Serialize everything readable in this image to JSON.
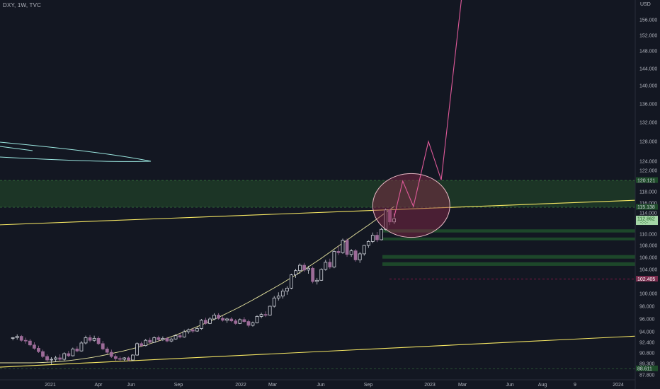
{
  "header": {
    "symbol": "DXY, 1W, TVC"
  },
  "chart_data": {
    "type": "candlestick",
    "title": "DXY, 1W, TVC",
    "currency": "USD",
    "ylim": [
      87.0,
      158.0
    ],
    "y_ticks": [
      {
        "v": 156.0,
        "label": "156.000"
      },
      {
        "v": 152.0,
        "label": "152.000"
      },
      {
        "v": 148.0,
        "label": "148.000"
      },
      {
        "v": 144.0,
        "label": "144.000"
      },
      {
        "v": 140.0,
        "label": "140.000"
      },
      {
        "v": 136.0,
        "label": "136.000"
      },
      {
        "v": 132.0,
        "label": "132.000"
      },
      {
        "v": 128.0,
        "label": "128.000"
      },
      {
        "v": 124.0,
        "label": "124.000"
      },
      {
        "v": 122.0,
        "label": "122.000"
      },
      {
        "v": 118.0,
        "label": "118.000"
      },
      {
        "v": 116.0,
        "label": "116.000"
      },
      {
        "v": 114.0,
        "label": "114.000"
      },
      {
        "v": 110.0,
        "label": "110.000"
      },
      {
        "v": 108.0,
        "label": "108.000"
      },
      {
        "v": 106.0,
        "label": "106.000"
      },
      {
        "v": 104.0,
        "label": "104.000"
      },
      {
        "v": 100.0,
        "label": "100.000"
      },
      {
        "v": 98.0,
        "label": "98.000"
      },
      {
        "v": 96.0,
        "label": "96.000"
      },
      {
        "v": 94.0,
        "label": "94.000"
      },
      {
        "v": 92.4,
        "label": "92.400"
      },
      {
        "v": 90.8,
        "label": "90.800"
      },
      {
        "v": 89.3,
        "label": "89.300"
      },
      {
        "v": 87.8,
        "label": "87.800"
      }
    ],
    "price_tags": [
      {
        "v": 120.121,
        "label": "120.121",
        "bg": "#1f4d2b",
        "fg": "#d1d4dc"
      },
      {
        "v": 115.138,
        "label": "115.138",
        "bg": "#1f4d2b",
        "fg": "#d1d4dc"
      },
      {
        "v": 112.862,
        "label": "112.862",
        "bg": "#a5d6a7",
        "fg": "#1b5e20",
        "sub": "-:-:-"
      },
      {
        "v": 102.405,
        "label": "102.405",
        "bg": "#7b2d4f",
        "fg": "#ffffff"
      },
      {
        "v": 88.611,
        "label": "88.611",
        "bg": "#1f4d2b",
        "fg": "#d1d4dc"
      }
    ],
    "x_labels": [
      "2021",
      "Apr",
      "Jun",
      "Sep",
      "2022",
      "Mar",
      "Jun",
      "Sep",
      "2023",
      "Mar",
      "Jun",
      "Aug",
      "9",
      "2024"
    ],
    "candles": [
      [
        93.0,
        93.2,
        92.7,
        93.1
      ],
      [
        93.1,
        93.6,
        92.8,
        93.3
      ],
      [
        93.3,
        93.5,
        92.5,
        92.7
      ],
      [
        92.7,
        93.1,
        92.2,
        92.6
      ],
      [
        92.6,
        92.9,
        91.8,
        92.0
      ],
      [
        92.0,
        92.4,
        91.3,
        91.5
      ],
      [
        91.5,
        91.9,
        90.8,
        91.0
      ],
      [
        91.0,
        91.3,
        90.1,
        90.3
      ],
      [
        90.3,
        90.6,
        89.5,
        89.8
      ],
      [
        89.8,
        90.2,
        89.2,
        89.9
      ],
      [
        89.9,
        90.4,
        89.5,
        90.1
      ],
      [
        90.1,
        90.6,
        89.6,
        89.9
      ],
      [
        89.9,
        90.9,
        89.7,
        90.7
      ],
      [
        90.7,
        91.1,
        90.2,
        90.4
      ],
      [
        90.4,
        91.6,
        90.3,
        91.4
      ],
      [
        91.4,
        91.8,
        90.9,
        91.1
      ],
      [
        91.1,
        92.6,
        91.0,
        92.3
      ],
      [
        92.3,
        93.4,
        92.1,
        93.1
      ],
      [
        93.1,
        93.5,
        92.4,
        92.7
      ],
      [
        92.7,
        93.4,
        92.5,
        93.0
      ],
      [
        93.0,
        93.3,
        92.0,
        92.2
      ],
      [
        92.2,
        92.6,
        91.2,
        91.4
      ],
      [
        91.4,
        91.7,
        90.6,
        90.9
      ],
      [
        90.9,
        91.3,
        90.1,
        90.3
      ],
      [
        90.3,
        90.6,
        89.7,
        90.0
      ],
      [
        90.0,
        90.3,
        89.6,
        89.9
      ],
      [
        89.9,
        90.2,
        89.6,
        90.1
      ],
      [
        90.1,
        90.3,
        89.6,
        89.8
      ],
      [
        89.8,
        90.6,
        89.7,
        90.5
      ],
      [
        90.5,
        92.4,
        90.4,
        92.2
      ],
      [
        92.2,
        92.5,
        91.7,
        91.9
      ],
      [
        91.9,
        92.9,
        91.8,
        92.7
      ],
      [
        92.7,
        93.1,
        92.2,
        92.4
      ],
      [
        92.4,
        93.3,
        92.3,
        93.1
      ],
      [
        93.1,
        93.4,
        92.5,
        92.8
      ],
      [
        92.8,
        93.3,
        92.6,
        93.0
      ],
      [
        93.0,
        93.2,
        92.4,
        92.6
      ],
      [
        92.6,
        93.1,
        92.4,
        92.9
      ],
      [
        92.9,
        93.6,
        92.8,
        93.4
      ],
      [
        93.4,
        93.8,
        93.0,
        93.2
      ],
      [
        93.2,
        94.3,
        93.1,
        94.0
      ],
      [
        94.0,
        94.5,
        93.7,
        94.3
      ],
      [
        94.3,
        94.6,
        93.8,
        94.1
      ],
      [
        94.1,
        94.7,
        94.0,
        94.5
      ],
      [
        94.5,
        96.0,
        94.3,
        95.8
      ],
      [
        95.8,
        96.2,
        95.1,
        95.3
      ],
      [
        95.3,
        96.3,
        95.2,
        96.0
      ],
      [
        96.0,
        96.9,
        95.8,
        96.6
      ],
      [
        96.6,
        96.9,
        95.9,
        96.1
      ],
      [
        96.1,
        96.5,
        95.6,
        95.8
      ],
      [
        95.8,
        96.2,
        95.4,
        96.0
      ],
      [
        96.0,
        96.3,
        95.5,
        95.7
      ],
      [
        95.7,
        96.0,
        95.1,
        95.3
      ],
      [
        95.3,
        96.1,
        95.2,
        95.9
      ],
      [
        95.9,
        96.3,
        95.4,
        95.6
      ],
      [
        95.6,
        95.9,
        94.7,
        95.0
      ],
      [
        95.0,
        95.6,
        94.8,
        95.4
      ],
      [
        95.4,
        96.6,
        95.3,
        96.4
      ],
      [
        96.4,
        97.0,
        96.1,
        96.7
      ],
      [
        96.7,
        97.2,
        96.3,
        96.6
      ],
      [
        96.6,
        98.1,
        96.5,
        98.0
      ],
      [
        98.0,
        99.6,
        97.8,
        99.3
      ],
      [
        99.3,
        100.2,
        98.9,
        99.6
      ],
      [
        99.6,
        100.8,
        99.2,
        100.4
      ],
      [
        100.4,
        101.2,
        99.8,
        100.9
      ],
      [
        100.9,
        103.3,
        100.7,
        103.1
      ],
      [
        103.1,
        104.1,
        102.6,
        103.8
      ],
      [
        103.8,
        105.0,
        103.3,
        104.7
      ],
      [
        104.7,
        105.1,
        103.6,
        103.9
      ],
      [
        103.9,
        104.6,
        103.3,
        104.2
      ],
      [
        104.2,
        104.5,
        101.7,
        102.0
      ],
      [
        102.0,
        102.6,
        101.5,
        102.2
      ],
      [
        102.2,
        104.2,
        102.1,
        104.0
      ],
      [
        104.0,
        105.6,
        103.8,
        105.2
      ],
      [
        105.2,
        105.8,
        104.1,
        104.4
      ],
      [
        104.4,
        107.2,
        104.2,
        107.0
      ],
      [
        107.0,
        107.9,
        106.4,
        106.8
      ],
      [
        106.8,
        109.2,
        106.6,
        108.9
      ],
      [
        108.9,
        109.2,
        106.1,
        106.5
      ],
      [
        106.5,
        107.4,
        106.1,
        107.1
      ],
      [
        107.1,
        107.4,
        105.3,
        105.6
      ],
      [
        105.6,
        106.9,
        105.1,
        106.6
      ],
      [
        106.6,
        108.1,
        106.3,
        108.0
      ],
      [
        108.0,
        108.9,
        107.6,
        108.7
      ],
      [
        108.7,
        110.3,
        108.4,
        109.8
      ],
      [
        109.8,
        110.4,
        108.6,
        109.0
      ],
      [
        109.0,
        111.2,
        108.9,
        110.9
      ],
      [
        110.9,
        114.9,
        110.7,
        114.6
      ],
      [
        114.6,
        114.8,
        111.7,
        112.3
      ],
      [
        112.3,
        113.9,
        111.9,
        112.9
      ]
    ],
    "zones": [
      {
        "name": "resistance",
        "y0": 115.138,
        "y1": 120.121,
        "color": "#1e3b27"
      },
      {
        "name": "support",
        "y0": 110.3,
        "y1": 110.9,
        "color": "#1f4d2b"
      },
      {
        "name": "support",
        "y0": 108.9,
        "y1": 109.4,
        "color": "#1f4d2b"
      },
      {
        "name": "support",
        "y0": 105.8,
        "y1": 106.4,
        "color": "#1f4d2b"
      },
      {
        "name": "support",
        "y0": 104.6,
        "y1": 105.2,
        "color": "#1f4d2b"
      }
    ],
    "forecast_path": [
      {
        "i": 89,
        "v": 113.2
      },
      {
        "i": 91,
        "v": 120.0
      },
      {
        "i": 93.5,
        "v": 115.3
      },
      {
        "i": 97,
        "v": 128.0
      },
      {
        "i": 100,
        "v": 120.2
      },
      {
        "i": 105,
        "v": 160.0
      }
    ],
    "upper_trendline": {
      "from": {
        "i": -8,
        "v": 111.5
      },
      "to": {
        "i": 200,
        "v": 118.0
      }
    },
    "lower_trendline": {
      "from": {
        "i": -8,
        "v": 88.6
      },
      "to": {
        "i": 200,
        "v": 95.0
      }
    },
    "highlight_ellipse": {
      "i": 96,
      "v": 115.5,
      "ri": 9,
      "rv": 6
    },
    "dashed_level": 102.405
  }
}
